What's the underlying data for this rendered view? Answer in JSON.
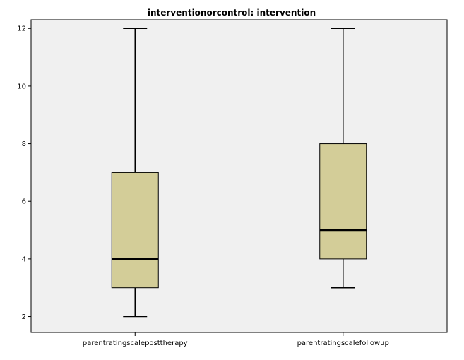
{
  "chart_data": {
    "type": "boxplot",
    "title": "interventionorcontrol: intervention",
    "xlabel": "",
    "ylabel": "",
    "categories": [
      "parentratingscaleposttherapy",
      "parentratingscalefollowup"
    ],
    "boxes": [
      {
        "category": "parentratingscaleposttherapy",
        "min": 2,
        "q1": 3,
        "median": 4,
        "q3": 7,
        "max": 12
      },
      {
        "category": "parentratingscalefollowup",
        "min": 3,
        "q1": 4,
        "median": 5,
        "q3": 8,
        "max": 12
      }
    ],
    "yticks": [
      2,
      4,
      6,
      8,
      10,
      12
    ],
    "ytick_labels": [
      "2",
      "4",
      "6",
      "8",
      "10",
      "12"
    ],
    "ylim": [
      1.45,
      12.3
    ],
    "grid": false,
    "colors": {
      "plot_background": "#f0f0f0",
      "box_fill": "#d3cd98",
      "line": "#000000"
    }
  }
}
